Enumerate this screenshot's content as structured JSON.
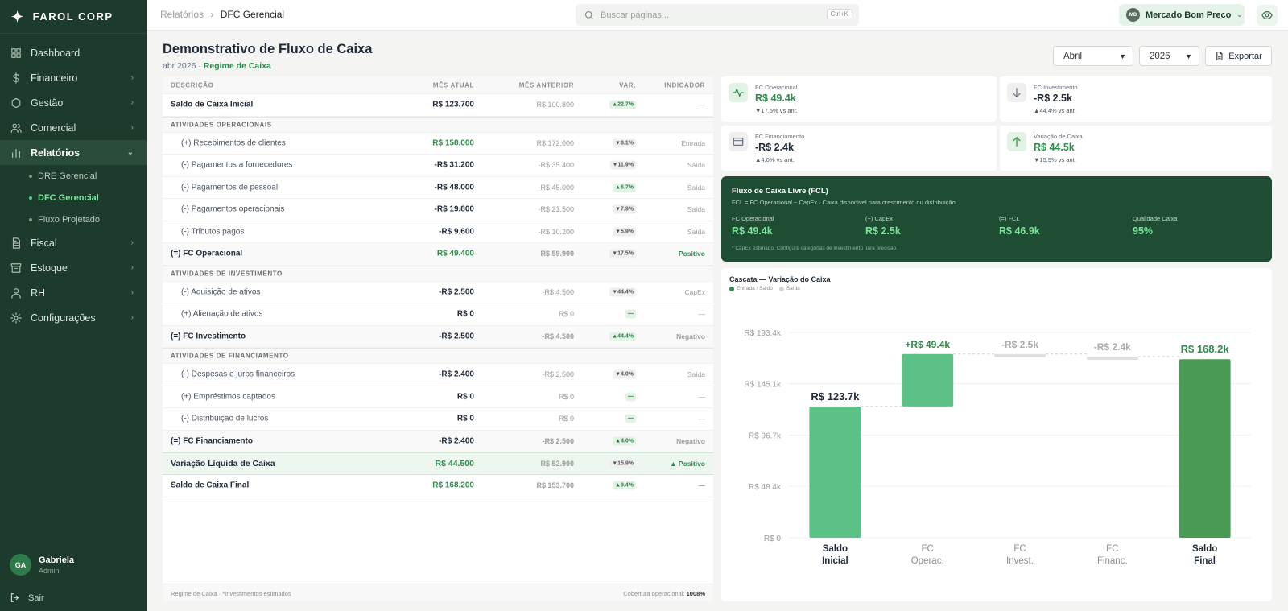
{
  "brand": "FAROL CORP",
  "nav": [
    {
      "label": "Dashboard",
      "icon": "grid-icon"
    },
    {
      "label": "Financeiro",
      "icon": "dollar-icon"
    },
    {
      "label": "Gestão",
      "icon": "hexagon-icon"
    },
    {
      "label": "Comercial",
      "icon": "users-icon"
    },
    {
      "label": "Relatórios",
      "icon": "bar-chart-icon",
      "active": true
    },
    {
      "label": "Fiscal",
      "icon": "document-icon"
    },
    {
      "label": "Estoque",
      "icon": "archive-icon"
    },
    {
      "label": "RH",
      "icon": "user-icon"
    },
    {
      "label": "Configurações",
      "icon": "gear-icon"
    }
  ],
  "subnav": [
    {
      "label": "DRE Gerencial"
    },
    {
      "label": "DFC Gerencial",
      "active": true
    },
    {
      "label": "Fluxo Projetado"
    }
  ],
  "user": {
    "initials": "GA",
    "name": "Gabriela",
    "role": "Admin",
    "logout": "Sair"
  },
  "topbar": {
    "crumb_parent": "Relatórios",
    "crumb_sep": "›",
    "crumb_current": "DFC Gerencial",
    "search_placeholder": "Buscar páginas...",
    "search_shortcut": "Ctrl+K",
    "company_initials": "MB",
    "company_name": "Mercado Bom Preco"
  },
  "page": {
    "title": "Demonstrativo de Fluxo de Caixa",
    "period": "abr 2026 · ",
    "regime": "Regime de Caixa",
    "month": "Abril",
    "year": "2026",
    "export_label": "Exportar"
  },
  "table": {
    "headers": [
      "DESCRIÇÃO",
      "MÊS ATUAL",
      "MÊS ANTERIOR",
      "VAR.",
      "INDICADOR"
    ],
    "rows": [
      {
        "kind": "row",
        "desc": "Saldo de Caixa Inicial",
        "atual": "R$ 123.700",
        "anterior": "R$ 100.800",
        "var": "▲22.7%",
        "dir": "pos",
        "ind": "—"
      },
      {
        "kind": "section",
        "desc": "ATIVIDADES OPERACIONAIS"
      },
      {
        "kind": "sub",
        "desc": "(+) Recebimentos de clientes",
        "atual": "R$ 158.000",
        "anterior": "R$ 172.000",
        "var": "▼8.1%",
        "dir": "neg",
        "ind": "Entrada",
        "green": true
      },
      {
        "kind": "sub",
        "desc": "(-) Pagamentos a fornecedores",
        "atual": "-R$ 31.200",
        "anterior": "-R$ 35.400",
        "var": "▼11.9%",
        "dir": "neg",
        "ind": "Saída"
      },
      {
        "kind": "sub",
        "desc": "(-) Pagamentos de pessoal",
        "atual": "-R$ 48.000",
        "anterior": "-R$ 45.000",
        "var": "▲6.7%",
        "dir": "pos",
        "ind": "Saída"
      },
      {
        "kind": "sub",
        "desc": "(-) Pagamentos operacionais",
        "atual": "-R$ 19.800",
        "anterior": "-R$ 21.500",
        "var": "▼7.9%",
        "dir": "neg",
        "ind": "Saída"
      },
      {
        "kind": "sub",
        "desc": "(-) Tributos pagos",
        "atual": "-R$ 9.600",
        "anterior": "-R$ 10.200",
        "var": "▼5.9%",
        "dir": "neg",
        "ind": "Saída"
      },
      {
        "kind": "total",
        "desc": "(=) FC Operacional",
        "atual": "R$ 49.400",
        "anterior": "R$ 59.900",
        "var": "▼17.5%",
        "dir": "neg",
        "ind": "Positivo",
        "green": true,
        "indgreen": true
      },
      {
        "kind": "section",
        "desc": "ATIVIDADES DE INVESTIMENTO"
      },
      {
        "kind": "sub",
        "desc": "(-) Aquisição de ativos",
        "atual": "-R$ 2.500",
        "anterior": "-R$ 4.500",
        "var": "▼44.4%",
        "dir": "neg",
        "ind": "CapEx"
      },
      {
        "kind": "sub",
        "desc": "(+) Alienação de ativos",
        "atual": "R$ 0",
        "anterior": "R$ 0",
        "var": "—",
        "dir": "pos",
        "ind": "—"
      },
      {
        "kind": "total",
        "desc": "(=) FC Investimento",
        "atual": "-R$ 2.500",
        "anterior": "-R$ 4.500",
        "var": "▲44.4%",
        "dir": "pos",
        "ind": "Negativo"
      },
      {
        "kind": "section",
        "desc": "ATIVIDADES DE FINANCIAMENTO"
      },
      {
        "kind": "sub",
        "desc": "(-) Despesas e juros financeiros",
        "atual": "-R$ 2.400",
        "anterior": "-R$ 2.500",
        "var": "▼4.0%",
        "dir": "neg",
        "ind": "Saída"
      },
      {
        "kind": "sub",
        "desc": "(+) Empréstimos captados",
        "atual": "R$ 0",
        "anterior": "R$ 0",
        "var": "—",
        "dir": "pos",
        "ind": "—"
      },
      {
        "kind": "sub",
        "desc": "(-) Distribuição de lucros",
        "atual": "R$ 0",
        "anterior": "R$ 0",
        "var": "—",
        "dir": "pos",
        "ind": "—"
      },
      {
        "kind": "total",
        "desc": "(=) FC Financiamento",
        "atual": "-R$ 2.400",
        "anterior": "-R$ 2.500",
        "var": "▲4.0%",
        "dir": "pos",
        "ind": "Negativo"
      },
      {
        "kind": "net",
        "desc": "Variação Líquida de Caixa",
        "atual": "R$ 44.500",
        "anterior": "R$ 52.900",
        "var": "▼15.9%",
        "dir": "neg",
        "ind": "▲ Positivo",
        "green": true,
        "indgreen": true
      },
      {
        "kind": "row",
        "desc": "Saldo de Caixa Final",
        "atual": "R$ 168.200",
        "anterior": "R$ 153.700",
        "var": "▲9.4%",
        "dir": "pos",
        "ind": "—",
        "green": true,
        "bold": true
      }
    ],
    "footer_left": "Regime de Caixa · *Investimentos estimados",
    "footer_right_label": "Cobertura operacional: ",
    "footer_right_value": "1008%"
  },
  "kpis": [
    {
      "label": "FC Operacional",
      "value": "R$ 49.4k",
      "delta": "▼17.5% vs ant.",
      "icon": "activity-icon",
      "color": "#2f8b4c",
      "iconbg": "#e2f3e6"
    },
    {
      "label": "FC Investimento",
      "value": "-R$ 2.5k",
      "delta": "▲44.4% vs ant.",
      "icon": "arrow-down-icon",
      "color": "#1f2937",
      "iconbg": "#eeefee"
    },
    {
      "label": "FC Financiamento",
      "value": "-R$ 2.4k",
      "delta": "▲4.0% vs ant.",
      "icon": "card-icon",
      "color": "#1f2937",
      "iconbg": "#eeefee"
    },
    {
      "label": "Variação de Caixa",
      "value": "R$ 44.5k",
      "delta": "▼15.9% vs ant.",
      "icon": "arrow-up-icon",
      "color": "#2f8b4c",
      "iconbg": "#e2f3e6"
    }
  ],
  "fcl": {
    "title": "Fluxo de Caixa Livre (FCL)",
    "subtitle": "FCL = FC Operacional − CapEx · Caixa disponível para crescimento ou distribuição",
    "items": [
      {
        "label": "FC Operacional",
        "value": "R$ 49.4k"
      },
      {
        "label": "(−) CapEx",
        "value": "R$ 2.5k"
      },
      {
        "label": "(=) FCL",
        "value": "R$ 46.9k"
      },
      {
        "label": "Qualidade Caixa",
        "value": "95%"
      }
    ],
    "note": "* CapEx estimado. Configure categorias de investimento para precisão."
  },
  "chart_data": {
    "type": "bar",
    "title": "Cascata — Variação do Caixa",
    "legend": [
      "Entrada / Saldo",
      "Saída"
    ],
    "legend_colors": [
      "#2f8b4c",
      "#d1d5d2"
    ],
    "categories": [
      [
        "Saldo",
        "Inicial"
      ],
      [
        "FC",
        "Operac."
      ],
      [
        "FC",
        "Invest."
      ],
      [
        "FC",
        "Financ."
      ],
      [
        "Saldo",
        "Final"
      ]
    ],
    "start": [
      0,
      123.7,
      170.6,
      168.2,
      0
    ],
    "end": [
      123.7,
      173.1,
      173.1,
      170.6,
      168.2
    ],
    "labels": [
      "R$ 123.7k",
      "+R$ 49.4k",
      "-R$ 2.5k",
      "-R$ 2.4k",
      "R$ 168.2k"
    ],
    "kinds": [
      "total",
      "in",
      "out",
      "out",
      "final"
    ],
    "yticks": [
      0,
      48.4,
      96.7,
      145.1,
      193.4
    ],
    "ytick_labels": [
      "R$ 0",
      "R$ 48.4k",
      "R$ 96.7k",
      "R$ 145.1k",
      "R$ 193.4k"
    ],
    "ylim": [
      0,
      193.4
    ],
    "colors": {
      "total": "#5cc185",
      "in": "#5cc185",
      "out": "#dedfde",
      "final": "#4a9a55"
    },
    "grid": true
  }
}
